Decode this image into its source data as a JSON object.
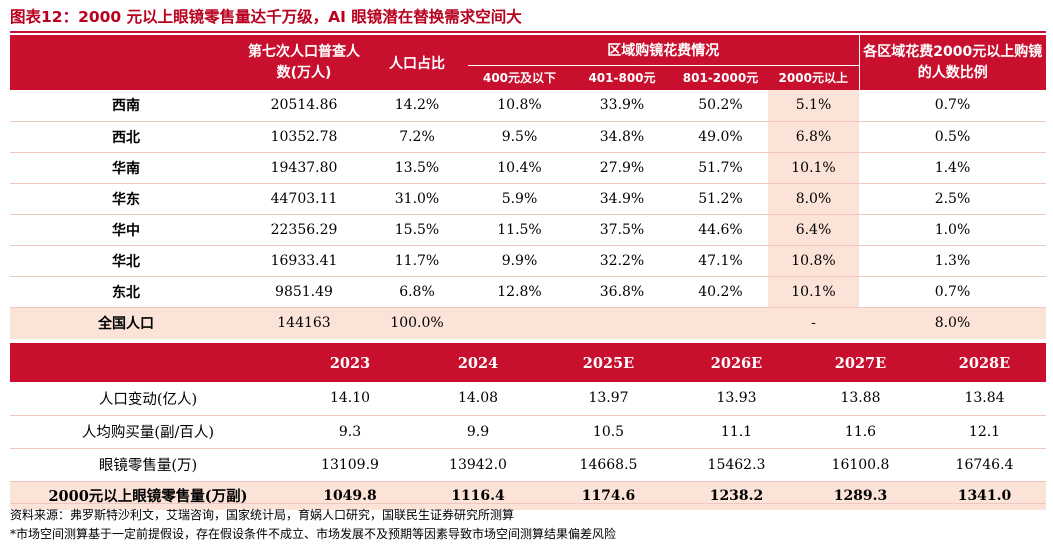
{
  "title": "图表12：2000 元以上眼镜零售量达千万级，AI 眼镜潜在替换需求空间大",
  "table1": {
    "header": {
      "census": "第七次人口普查人数(万人)",
      "share": "人口占比",
      "spend_group": "区域购镜花费情况",
      "spend_cols": [
        "400元及以下",
        "401-800元",
        "801-2000元",
        "2000元以上"
      ],
      "ratio": "各区域花费2000元以上购镜的人数比例"
    },
    "rows": [
      {
        "region": "西南",
        "census": "20514.86",
        "share": "14.2%",
        "s1": "10.8%",
        "s2": "33.9%",
        "s3": "50.2%",
        "s4": "5.1%",
        "ratio": "0.7%"
      },
      {
        "region": "西北",
        "census": "10352.78",
        "share": "7.2%",
        "s1": "9.5%",
        "s2": "34.8%",
        "s3": "49.0%",
        "s4": "6.8%",
        "ratio": "0.5%"
      },
      {
        "region": "华南",
        "census": "19437.80",
        "share": "13.5%",
        "s1": "10.4%",
        "s2": "27.9%",
        "s3": "51.7%",
        "s4": "10.1%",
        "ratio": "1.4%"
      },
      {
        "region": "华东",
        "census": "44703.11",
        "share": "31.0%",
        "s1": "5.9%",
        "s2": "34.9%",
        "s3": "51.2%",
        "s4": "8.0%",
        "ratio": "2.5%"
      },
      {
        "region": "华中",
        "census": "22356.29",
        "share": "15.5%",
        "s1": "11.5%",
        "s2": "37.5%",
        "s3": "44.6%",
        "s4": "6.4%",
        "ratio": "1.0%"
      },
      {
        "region": "华北",
        "census": "16933.41",
        "share": "11.7%",
        "s1": "9.9%",
        "s2": "32.2%",
        "s3": "47.1%",
        "s4": "10.8%",
        "ratio": "1.3%"
      },
      {
        "region": "东北",
        "census": "9851.49",
        "share": "6.8%",
        "s1": "12.8%",
        "s2": "36.8%",
        "s3": "40.2%",
        "s4": "10.1%",
        "ratio": "0.7%"
      }
    ],
    "total": {
      "region": "全国人口",
      "census": "144163",
      "share": "100.0%",
      "s4": "-",
      "ratio": "8.0%"
    }
  },
  "table2": {
    "years": [
      "2023",
      "2024",
      "2025E",
      "2026E",
      "2027E",
      "2028E"
    ],
    "rows": [
      {
        "label": "人口变动(亿人)",
        "values": [
          "14.10",
          "14.08",
          "13.97",
          "13.93",
          "13.88",
          "13.84"
        ]
      },
      {
        "label": "人均购买量(副/百人)",
        "values": [
          "9.3",
          "9.9",
          "10.5",
          "11.1",
          "11.6",
          "12.1"
        ]
      },
      {
        "label": "眼镜零售量(万)",
        "values": [
          "13109.9",
          "13942.0",
          "14668.5",
          "15462.3",
          "16100.8",
          "16746.4"
        ]
      }
    ],
    "total": {
      "label": "2000元以上眼镜零售量(万副)",
      "values": [
        "1049.8",
        "1116.4",
        "1174.6",
        "1238.2",
        "1289.3",
        "1341.0"
      ]
    }
  },
  "notes": {
    "source": "资料来源：弗罗斯特沙利文，艾瑞咨询，国家统计局，育娲人口研究，国联民生证券研究所测算",
    "risk": "*市场空间测算基于一定前提假设，存在假设条件不成立、市场发展不及预期等因素导致市场空间测算结果偏差风险"
  }
}
